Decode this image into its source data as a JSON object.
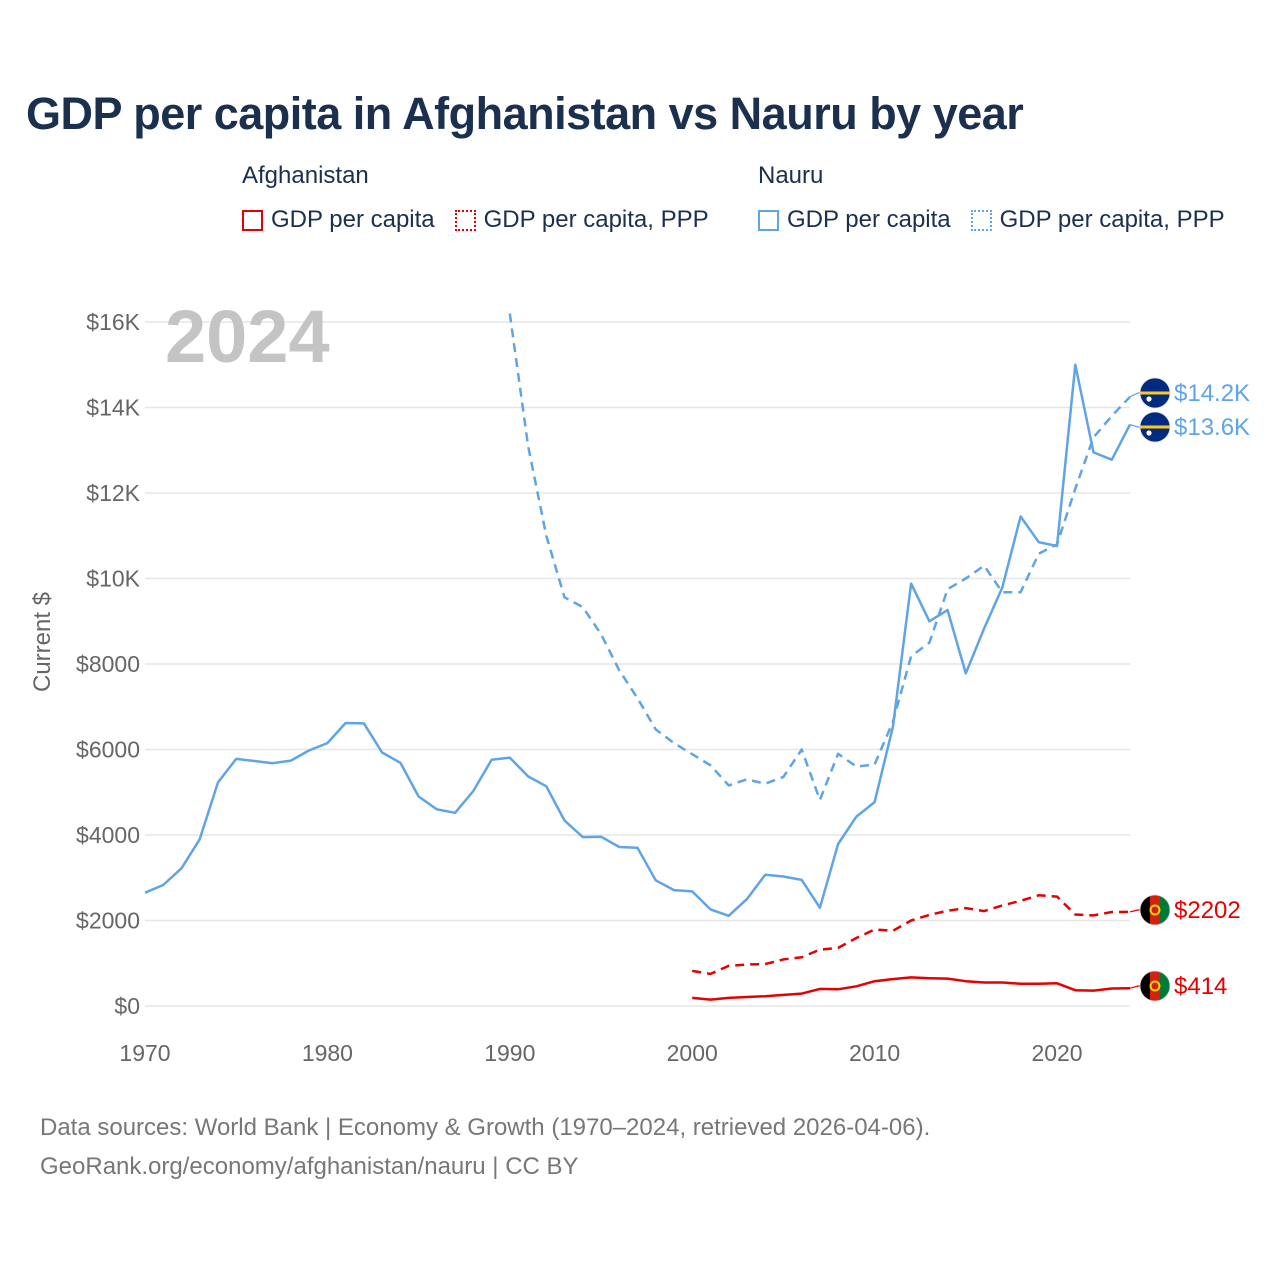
{
  "title": "GDP per capita in Afghanistan vs Nauru by year",
  "legend": {
    "groups": [
      {
        "name": "Afghanistan",
        "color": "#e60000",
        "items": [
          "GDP per capita",
          "GDP per capita, PPP"
        ]
      },
      {
        "name": "Nauru",
        "color": "#5ea4e6",
        "items": [
          "GDP per capita",
          "GDP per capita, PPP"
        ]
      }
    ]
  },
  "chart_data": {
    "type": "line",
    "title": "GDP per capita in Afghanistan vs Nauru by year",
    "year_label": "2024",
    "xlabel": "",
    "ylabel": "Current $",
    "xlim": [
      1970,
      2024
    ],
    "ylim": [
      0,
      16000
    ],
    "x_ticks": [
      1970,
      1980,
      1990,
      2000,
      2010,
      2020
    ],
    "y_ticks": [
      0,
      2000,
      4000,
      6000,
      8000,
      10000,
      12000,
      14000,
      16000
    ],
    "y_tick_labels": [
      "$0",
      "$2000",
      "$4000",
      "$6000",
      "$8000",
      "$10K",
      "$12K",
      "$14K",
      "$16K"
    ],
    "grid": true,
    "series": [
      {
        "name": "Nauru GDP per capita",
        "country": "Nauru",
        "style": "solid",
        "color": "#5ea4e6",
        "end_label": "$13.6K",
        "flag": "nauru",
        "x": [
          1970,
          1971,
          1972,
          1973,
          1974,
          1975,
          1976,
          1977,
          1978,
          1979,
          1980,
          1981,
          1982,
          1983,
          1984,
          1985,
          1986,
          1987,
          1988,
          1989,
          1990,
          1991,
          1992,
          1993,
          1994,
          1995,
          1996,
          1997,
          1998,
          1999,
          2000,
          2001,
          2002,
          2003,
          2004,
          2005,
          2006,
          2007,
          2008,
          2009,
          2010,
          2011,
          2012,
          2013,
          2014,
          2015,
          2016,
          2017,
          2018,
          2019,
          2020,
          2021,
          2022,
          2023,
          2024
        ],
        "y": [
          2650,
          2830,
          3220,
          3900,
          5230,
          5780,
          5730,
          5680,
          5740,
          5980,
          6150,
          6620,
          6610,
          5930,
          5690,
          4900,
          4600,
          4520,
          5030,
          5760,
          5810,
          5370,
          5140,
          4340,
          3950,
          3960,
          3720,
          3700,
          2940,
          2710,
          2680,
          2260,
          2110,
          2500,
          3070,
          3030,
          2950,
          2300,
          3790,
          4430,
          4770,
          6530,
          9880,
          9000,
          9260,
          7780,
          8830,
          9790,
          11450,
          10850,
          10760,
          15000,
          12950,
          12780,
          13600
        ]
      },
      {
        "name": "Nauru GDP per capita, PPP",
        "country": "Nauru",
        "style": "dashed",
        "color": "#5ea4e6",
        "end_label": "$14.2K",
        "flag": "nauru",
        "x": [
          1990,
          1991,
          1992,
          1993,
          1994,
          1995,
          1996,
          1997,
          1998,
          1999,
          2000,
          2001,
          2002,
          2003,
          2004,
          2005,
          2006,
          2007,
          2008,
          2009,
          2010,
          2011,
          2012,
          2013,
          2014,
          2015,
          2016,
          2017,
          2018,
          2019,
          2020,
          2021,
          2022,
          2023,
          2024
        ],
        "y": [
          16200,
          13100,
          11000,
          9560,
          9330,
          8700,
          7850,
          7200,
          6470,
          6150,
          5890,
          5630,
          5160,
          5300,
          5200,
          5360,
          6000,
          4820,
          5900,
          5600,
          5650,
          6650,
          8180,
          8500,
          9750,
          10000,
          10300,
          9680,
          9680,
          10580,
          10800,
          12100,
          13300,
          13800,
          14250
        ]
      },
      {
        "name": "Afghanistan GDP per capita",
        "country": "Afghanistan",
        "style": "solid",
        "color": "#e60000",
        "end_label": "$414",
        "flag": "afghanistan",
        "x": [
          2000,
          2001,
          2002,
          2003,
          2004,
          2005,
          2006,
          2007,
          2008,
          2009,
          2010,
          2011,
          2012,
          2013,
          2014,
          2015,
          2016,
          2017,
          2018,
          2019,
          2020,
          2021,
          2022,
          2023,
          2024
        ],
        "y": [
          190,
          150,
          190,
          210,
          230,
          260,
          290,
          400,
          390,
          460,
          580,
          630,
          670,
          650,
          640,
          580,
          550,
          550,
          520,
          520,
          530,
          370,
          360,
          410,
          414
        ]
      },
      {
        "name": "Afghanistan GDP per capita, PPP",
        "country": "Afghanistan",
        "style": "dashed",
        "color": "#e60000",
        "end_label": "$2202",
        "flag": "afghanistan",
        "x": [
          2000,
          2001,
          2002,
          2003,
          2004,
          2005,
          2006,
          2007,
          2008,
          2009,
          2010,
          2011,
          2012,
          2013,
          2014,
          2015,
          2016,
          2017,
          2018,
          2019,
          2020,
          2021,
          2022,
          2023,
          2024
        ],
        "y": [
          820,
          750,
          940,
          970,
          980,
          1090,
          1140,
          1320,
          1360,
          1590,
          1790,
          1760,
          2000,
          2130,
          2230,
          2290,
          2220,
          2350,
          2460,
          2590,
          2560,
          2140,
          2120,
          2200,
          2202
        ]
      }
    ]
  },
  "footer": {
    "line1": "Data sources: World Bank | Economy & Growth (1970–2024, retrieved 2026-04-06).",
    "line2": "GeoRank.org/economy/afghanistan/nauru | CC BY"
  }
}
